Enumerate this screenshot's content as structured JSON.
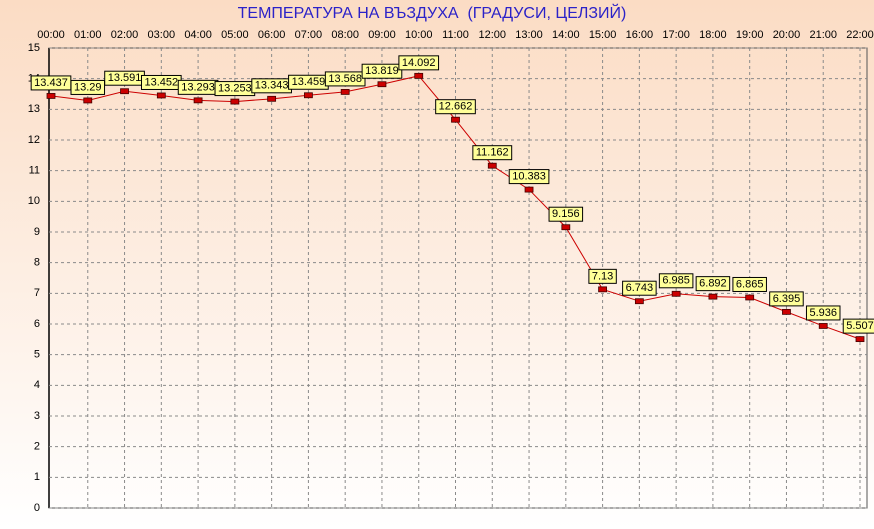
{
  "chart_data": {
    "type": "line",
    "title": "ТЕМПЕРАТУРА НА ВЪЗДУХА  (ГРАДУСИ, ЦЕЛЗИЙ)",
    "categories": [
      "00:00",
      "01:00",
      "02:00",
      "03:00",
      "04:00",
      "05:00",
      "06:00",
      "07:00",
      "08:00",
      "09:00",
      "10:00",
      "11:00",
      "12:00",
      "13:00",
      "14:00",
      "15:00",
      "16:00",
      "17:00",
      "18:00",
      "19:00",
      "20:00",
      "21:00",
      "22:00"
    ],
    "series": [
      {
        "color": "#cc0000",
        "values": [
          13.437,
          13.29,
          13.591,
          13.452,
          13.293,
          13.253,
          13.343,
          13.459,
          13.568,
          13.819,
          14.092,
          12.662,
          11.162,
          10.383,
          9.156,
          7.13,
          6.743,
          6.985,
          6.892,
          6.865,
          6.395,
          5.936,
          5.507
        ]
      }
    ],
    "ylim": [
      0,
      15
    ],
    "yticks": [
      0,
      1,
      2,
      3,
      4,
      5,
      6,
      7,
      8,
      9,
      10,
      11,
      12,
      13,
      14,
      15
    ],
    "grid": true
  }
}
